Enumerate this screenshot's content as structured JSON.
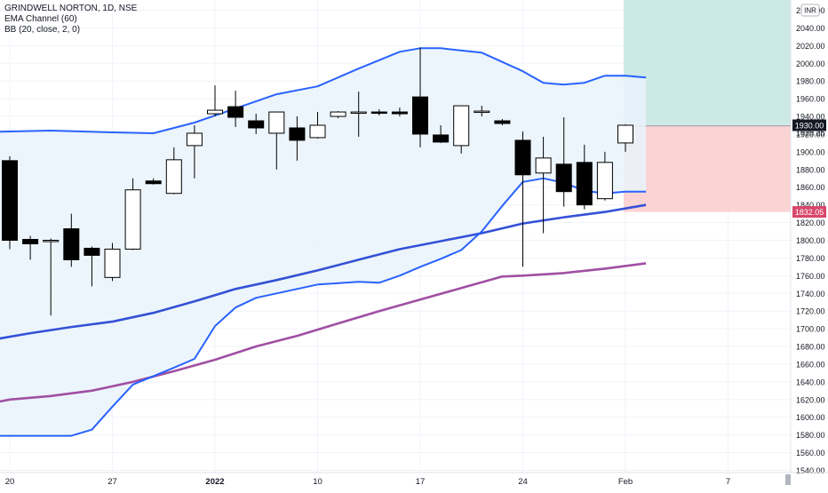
{
  "legend": {
    "title": "GRINDWELL NORTON, 1D, NSE",
    "ema_label": "EMA Channel (60)",
    "bb_label": "BB (20, close, 2, 0)"
  },
  "currency_badge": "INR",
  "colors": {
    "bb_band": "#2962ff",
    "ema_channel": "#3451d6",
    "ema_magenta": "#a04fa3",
    "bb_fill": "#eaf3fb",
    "target_zone": "#cde9e6",
    "stop_zone": "#fbd3d3",
    "badge_target": "#131722",
    "badge_stop": "#d7476a",
    "bull_body": "#ffffff",
    "bear_body": "#000000"
  },
  "chart_data": {
    "type": "candlestick",
    "title": "GRINDWELL NORTON, 1D, NSE",
    "ylim": [
      1530,
      2080
    ],
    "y_ticks": [
      "1540.00",
      "1560.00",
      "1580.00",
      "1600.00",
      "1620.00",
      "1640.00",
      "1660.00",
      "1680.00",
      "1700.00",
      "1720.00",
      "1740.00",
      "1760.00",
      "1780.00",
      "1800.00",
      "1820.00",
      "1840.00",
      "1860.00",
      "1880.00",
      "1900.00",
      "1920.00",
      "1940.00",
      "1960.00",
      "1980.00",
      "2000.00",
      "2020.00",
      "2040.00",
      "2060.00"
    ],
    "y_top_partial": "20",
    "y_top_partial_value": 2080,
    "x_labels": [
      {
        "label": "20",
        "index": 0
      },
      {
        "label": "27",
        "index": 5
      },
      {
        "label": "2022",
        "index": 10
      },
      {
        "label": "10",
        "index": 15
      },
      {
        "label": "17",
        "index": 20
      },
      {
        "label": "24",
        "index": 25
      },
      {
        "label": "Feb",
        "index": 30
      },
      {
        "label": "7",
        "index": 35
      }
    ],
    "candles": [
      {
        "o": 1890,
        "h": 1895,
        "l": 1790,
        "c": 1800
      },
      {
        "o": 1801,
        "h": 1805,
        "l": 1778,
        "c": 1796
      },
      {
        "o": 1800,
        "h": 1802,
        "l": 1715,
        "c": 1800
      },
      {
        "o": 1813,
        "h": 1830,
        "l": 1770,
        "c": 1778
      },
      {
        "o": 1791,
        "h": 1793,
        "l": 1748,
        "c": 1783
      },
      {
        "o": 1758,
        "h": 1797,
        "l": 1754,
        "c": 1790
      },
      {
        "o": 1790,
        "h": 1870,
        "l": 1789,
        "c": 1857
      },
      {
        "o": 1867,
        "h": 1870,
        "l": 1863,
        "c": 1864
      },
      {
        "o": 1853,
        "h": 1905,
        "l": 1852,
        "c": 1891
      },
      {
        "o": 1907,
        "h": 1930,
        "l": 1870,
        "c": 1921
      },
      {
        "o": 1943,
        "h": 1975,
        "l": 1940,
        "c": 1947
      },
      {
        "o": 1951,
        "h": 1969,
        "l": 1928,
        "c": 1939
      },
      {
        "o": 1935,
        "h": 1943,
        "l": 1920,
        "c": 1927
      },
      {
        "o": 1921,
        "h": 1945,
        "l": 1880,
        "c": 1945
      },
      {
        "o": 1927,
        "h": 1940,
        "l": 1890,
        "c": 1913
      },
      {
        "o": 1916,
        "h": 1945,
        "l": 1915,
        "c": 1930
      },
      {
        "o": 1940,
        "h": 1946,
        "l": 1938,
        "c": 1945
      },
      {
        "o": 1945,
        "h": 1968,
        "l": 1917,
        "c": 1945
      },
      {
        "o": 1945,
        "h": 1948,
        "l": 1941,
        "c": 1944
      },
      {
        "o": 1945,
        "h": 1950,
        "l": 1940,
        "c": 1943
      },
      {
        "o": 1962,
        "h": 2018,
        "l": 1905,
        "c": 1920
      },
      {
        "o": 1919,
        "h": 1930,
        "l": 1910,
        "c": 1911
      },
      {
        "o": 1907,
        "h": 1952,
        "l": 1898,
        "c": 1952
      },
      {
        "o": 1946,
        "h": 1952,
        "l": 1940,
        "c": 1946
      },
      {
        "o": 1935,
        "h": 1937,
        "l": 1930,
        "c": 1932
      },
      {
        "o": 1913,
        "h": 1923,
        "l": 1770,
        "c": 1874
      },
      {
        "o": 1876,
        "h": 1917,
        "l": 1808,
        "c": 1893
      },
      {
        "o": 1886,
        "h": 1939,
        "l": 1838,
        "c": 1855
      },
      {
        "o": 1888,
        "h": 1908,
        "l": 1835,
        "c": 1840
      },
      {
        "o": 1847,
        "h": 1900,
        "l": 1845,
        "c": 1888
      },
      {
        "o": 1910,
        "h": 1931,
        "l": 1900,
        "c": 1930
      }
    ],
    "bb_upper": [
      {
        "i": -2,
        "v": 1922
      },
      {
        "i": 2,
        "v": 1924
      },
      {
        "i": 5,
        "v": 1922
      },
      {
        "i": 7,
        "v": 1921
      },
      {
        "i": 9,
        "v": 1933
      },
      {
        "i": 11,
        "v": 1949
      },
      {
        "i": 13,
        "v": 1965
      },
      {
        "i": 15,
        "v": 1974
      },
      {
        "i": 17,
        "v": 1994
      },
      {
        "i": 19,
        "v": 2013
      },
      {
        "i": 20,
        "v": 2017
      },
      {
        "i": 21,
        "v": 2017
      },
      {
        "i": 23,
        "v": 2012
      },
      {
        "i": 25,
        "v": 1991
      },
      {
        "i": 26,
        "v": 1978
      },
      {
        "i": 27,
        "v": 1976
      },
      {
        "i": 28,
        "v": 1978
      },
      {
        "i": 29,
        "v": 1986
      },
      {
        "i": 30,
        "v": 1986
      },
      {
        "i": 31,
        "v": 1984
      }
    ],
    "bb_lower": [
      {
        "i": -2,
        "v": 1579
      },
      {
        "i": 2,
        "v": 1579
      },
      {
        "i": 3,
        "v": 1579
      },
      {
        "i": 4,
        "v": 1586
      },
      {
        "i": 5,
        "v": 1612
      },
      {
        "i": 6,
        "v": 1637
      },
      {
        "i": 8,
        "v": 1656
      },
      {
        "i": 9,
        "v": 1666
      },
      {
        "i": 10,
        "v": 1703
      },
      {
        "i": 11,
        "v": 1724
      },
      {
        "i": 12,
        "v": 1735
      },
      {
        "i": 15,
        "v": 1750
      },
      {
        "i": 17,
        "v": 1753
      },
      {
        "i": 18,
        "v": 1752
      },
      {
        "i": 19,
        "v": 1760
      },
      {
        "i": 20,
        "v": 1770
      },
      {
        "i": 21,
        "v": 1779
      },
      {
        "i": 22,
        "v": 1789
      },
      {
        "i": 23,
        "v": 1810
      },
      {
        "i": 24,
        "v": 1839
      },
      {
        "i": 25,
        "v": 1866
      },
      {
        "i": 26,
        "v": 1870
      },
      {
        "i": 27,
        "v": 1865
      },
      {
        "i": 28,
        "v": 1856
      },
      {
        "i": 29,
        "v": 1853
      },
      {
        "i": 30,
        "v": 1855
      },
      {
        "i": 31,
        "v": 1855
      }
    ],
    "ema_channel": [
      {
        "i": -2,
        "v": 1683
      },
      {
        "i": 1,
        "v": 1695
      },
      {
        "i": 3,
        "v": 1702
      },
      {
        "i": 5,
        "v": 1708
      },
      {
        "i": 7,
        "v": 1718
      },
      {
        "i": 9,
        "v": 1731
      },
      {
        "i": 11,
        "v": 1745
      },
      {
        "i": 13,
        "v": 1755
      },
      {
        "i": 15,
        "v": 1766
      },
      {
        "i": 17,
        "v": 1778
      },
      {
        "i": 19,
        "v": 1790
      },
      {
        "i": 21,
        "v": 1799
      },
      {
        "i": 23,
        "v": 1808
      },
      {
        "i": 25,
        "v": 1819
      },
      {
        "i": 27,
        "v": 1826
      },
      {
        "i": 29,
        "v": 1832
      },
      {
        "i": 31,
        "v": 1840
      }
    ],
    "ema_magenta": [
      {
        "i": -2,
        "v": 1611
      },
      {
        "i": 0,
        "v": 1620
      },
      {
        "i": 2,
        "v": 1624
      },
      {
        "i": 4,
        "v": 1630
      },
      {
        "i": 6,
        "v": 1640
      },
      {
        "i": 8,
        "v": 1652
      },
      {
        "i": 10,
        "v": 1665
      },
      {
        "i": 12,
        "v": 1680
      },
      {
        "i": 14,
        "v": 1692
      },
      {
        "i": 16,
        "v": 1706
      },
      {
        "i": 18,
        "v": 1720
      },
      {
        "i": 20,
        "v": 1733
      },
      {
        "i": 22,
        "v": 1746
      },
      {
        "i": 24,
        "v": 1759
      },
      {
        "i": 25,
        "v": 1760
      },
      {
        "i": 27,
        "v": 1763
      },
      {
        "i": 29,
        "v": 1768
      },
      {
        "i": 31,
        "v": 1774
      }
    ],
    "position": {
      "entry": 1929.25,
      "target": 1930.0,
      "stop": 1832.05,
      "target_zone_top": 2080,
      "target_label": "1930.00",
      "entry_label": "1929.25",
      "stop_label": "1832.05"
    }
  }
}
